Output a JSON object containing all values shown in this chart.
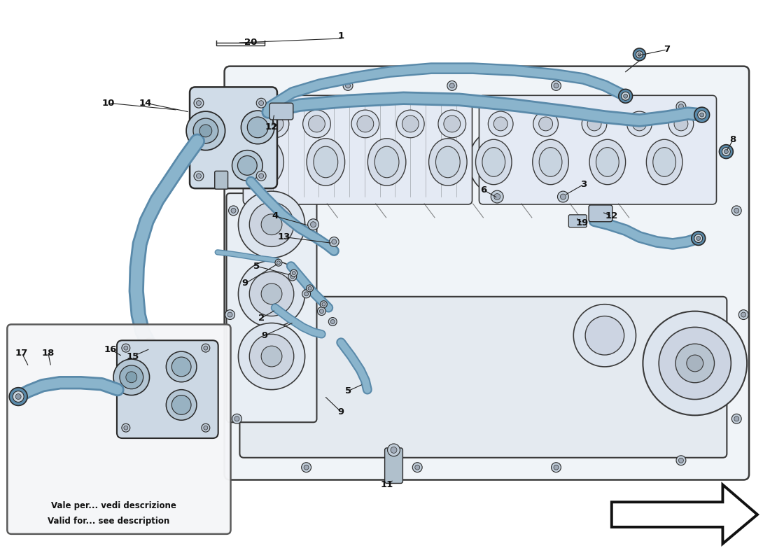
{
  "background_color": "#ffffff",
  "line_color": "#2a2a2a",
  "engine_line": "#3a3a3a",
  "hose_fill": "#8ab4cc",
  "hose_dark": "#5a8aaa",
  "hose_mid": "#7aa4be",
  "fitting_fill": "#b0c8d8",
  "engine_body": "#f0f4f8",
  "engine_shade": "#dde4ec",
  "engine_dark": "#c8d4de",
  "watermark_color": "#d8c840",
  "watermark_alpha": 0.28,
  "label_color": "#1a1a1a",
  "inset_bg": "#f5f6f8",
  "inset_label_it": "Vale per... vedi descrizione",
  "inset_label_en": "Valid for... see description"
}
